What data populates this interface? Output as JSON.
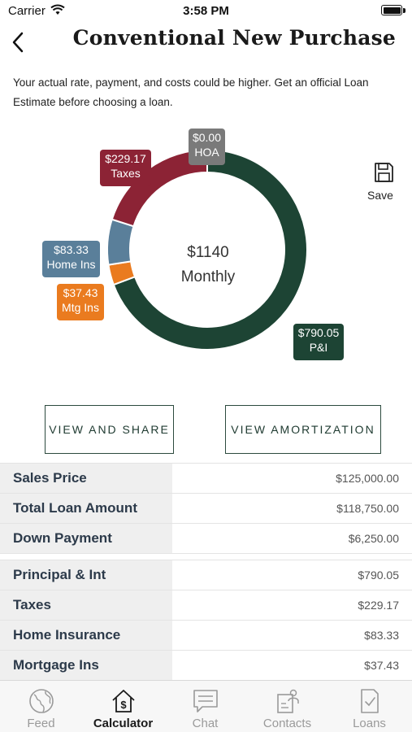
{
  "status": {
    "carrier": "Carrier",
    "time": "3:58 PM"
  },
  "header": {
    "title": "Conventional New Purchase"
  },
  "disclaimer": "Your actual rate, payment, and costs could be higher. Get an official Loan Estimate before choosing a loan.",
  "chart": {
    "center_amount": "$1140",
    "center_label": "Monthly",
    "save_label": "Save"
  },
  "chart_data": {
    "type": "pie",
    "total": 1140,
    "slices": [
      {
        "amount": "$790.05",
        "label": "P&I",
        "value": 790.05,
        "color": "#1d4434"
      },
      {
        "amount": "$37.43",
        "label": "Mtg Ins",
        "value": 37.43,
        "color": "#ea7b1f"
      },
      {
        "amount": "$83.33",
        "label": "Home Ins",
        "value": 83.33,
        "color": "#5a7f9a"
      },
      {
        "amount": "$229.17",
        "label": "Taxes",
        "value": 229.17,
        "color": "#8c2335"
      },
      {
        "amount": "$0.00",
        "label": "HOA",
        "value": 0.0,
        "color": "#7a7a7a"
      }
    ]
  },
  "buttons": {
    "view_share": "VIEW AND SHARE",
    "view_amortization": "VIEW AMORTIZATION"
  },
  "summary_group1": [
    {
      "label": "Sales Price",
      "value": "$125,000.00"
    },
    {
      "label": "Total Loan Amount",
      "value": "$118,750.00"
    },
    {
      "label": "Down Payment",
      "value": "$6,250.00"
    }
  ],
  "summary_group2": [
    {
      "label": "Principal & Int",
      "value": "$790.05"
    },
    {
      "label": "Taxes",
      "value": "$229.17"
    },
    {
      "label": "Home Insurance",
      "value": "$83.33"
    },
    {
      "label": "Mortgage Ins",
      "value": "$37.43"
    }
  ],
  "tabs": [
    {
      "label": "Feed",
      "icon": "globe-icon"
    },
    {
      "label": "Calculator",
      "icon": "calculator-house-icon",
      "active": true
    },
    {
      "label": "Chat",
      "icon": "chat-icon"
    },
    {
      "label": "Contacts",
      "icon": "contacts-icon"
    },
    {
      "label": "Loans",
      "icon": "loan-document-icon"
    }
  ]
}
